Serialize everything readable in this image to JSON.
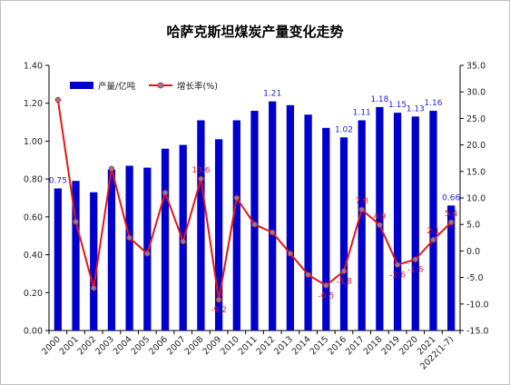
{
  "chart_data": {
    "type": "bar+line",
    "title": "哈萨克斯坦煤炭产量变化走势",
    "categories": [
      "2000",
      "2001",
      "2002",
      "2003",
      "2004",
      "2005",
      "2006",
      "2007",
      "2008",
      "2009",
      "2010",
      "2011",
      "2012",
      "2013",
      "2014",
      "2015",
      "2016",
      "2017",
      "2018",
      "2019",
      "2020",
      "2021",
      "2022(1-7)"
    ],
    "series": [
      {
        "name": "产量/亿吨",
        "axis": "left",
        "kind": "bar",
        "color": "#0000cc",
        "values": [
          0.75,
          0.79,
          0.73,
          0.85,
          0.87,
          0.86,
          0.96,
          0.98,
          1.11,
          1.01,
          1.11,
          1.16,
          1.21,
          1.19,
          1.14,
          1.07,
          1.02,
          1.11,
          1.18,
          1.15,
          1.13,
          1.16,
          0.66
        ],
        "labels": [
          "0.75",
          "",
          "",
          "",
          "",
          "",
          "",
          "",
          "",
          "",
          "",
          "",
          "1.21",
          "",
          "",
          "",
          "1.02",
          "1.11",
          "1.18",
          "1.15",
          "1.13",
          "1.16",
          "0.66"
        ]
      },
      {
        "name": "增长率(%)",
        "axis": "right",
        "kind": "line",
        "color": "#e81515",
        "values": [
          28.5,
          5.5,
          -7.0,
          15.5,
          2.5,
          -0.5,
          11.0,
          1.8,
          13.6,
          -9.2,
          10.0,
          5.0,
          3.5,
          -0.5,
          -4.5,
          -6.5,
          -3.8,
          7.8,
          4.9,
          -2.6,
          -1.6,
          2.1,
          5.4
        ],
        "labels": [
          "",
          "",
          "",
          "",
          "",
          "",
          "",
          "",
          "13.6",
          "-9.2",
          "",
          "",
          "",
          "",
          "",
          "-6.5",
          "-3.8",
          "7.8",
          "4.9",
          "-2.6",
          "-1.6",
          "2.1",
          "5.4"
        ]
      }
    ],
    "y_left": {
      "min": 0,
      "max": 1.4,
      "step": 0.2,
      "tick_labels": [
        "0.00",
        "0.20",
        "0.40",
        "0.60",
        "0.80",
        "1.00",
        "1.20",
        "1.40"
      ]
    },
    "y_right": {
      "min": -15,
      "max": 35,
      "step": 5,
      "tick_labels": [
        "-15.0",
        "-10.0",
        "-5.0",
        "0.0",
        "5.0",
        "10.0",
        "15.0",
        "20.0",
        "25.0",
        "30.0",
        "35.0"
      ]
    },
    "grid": false,
    "legend": "top-left"
  }
}
